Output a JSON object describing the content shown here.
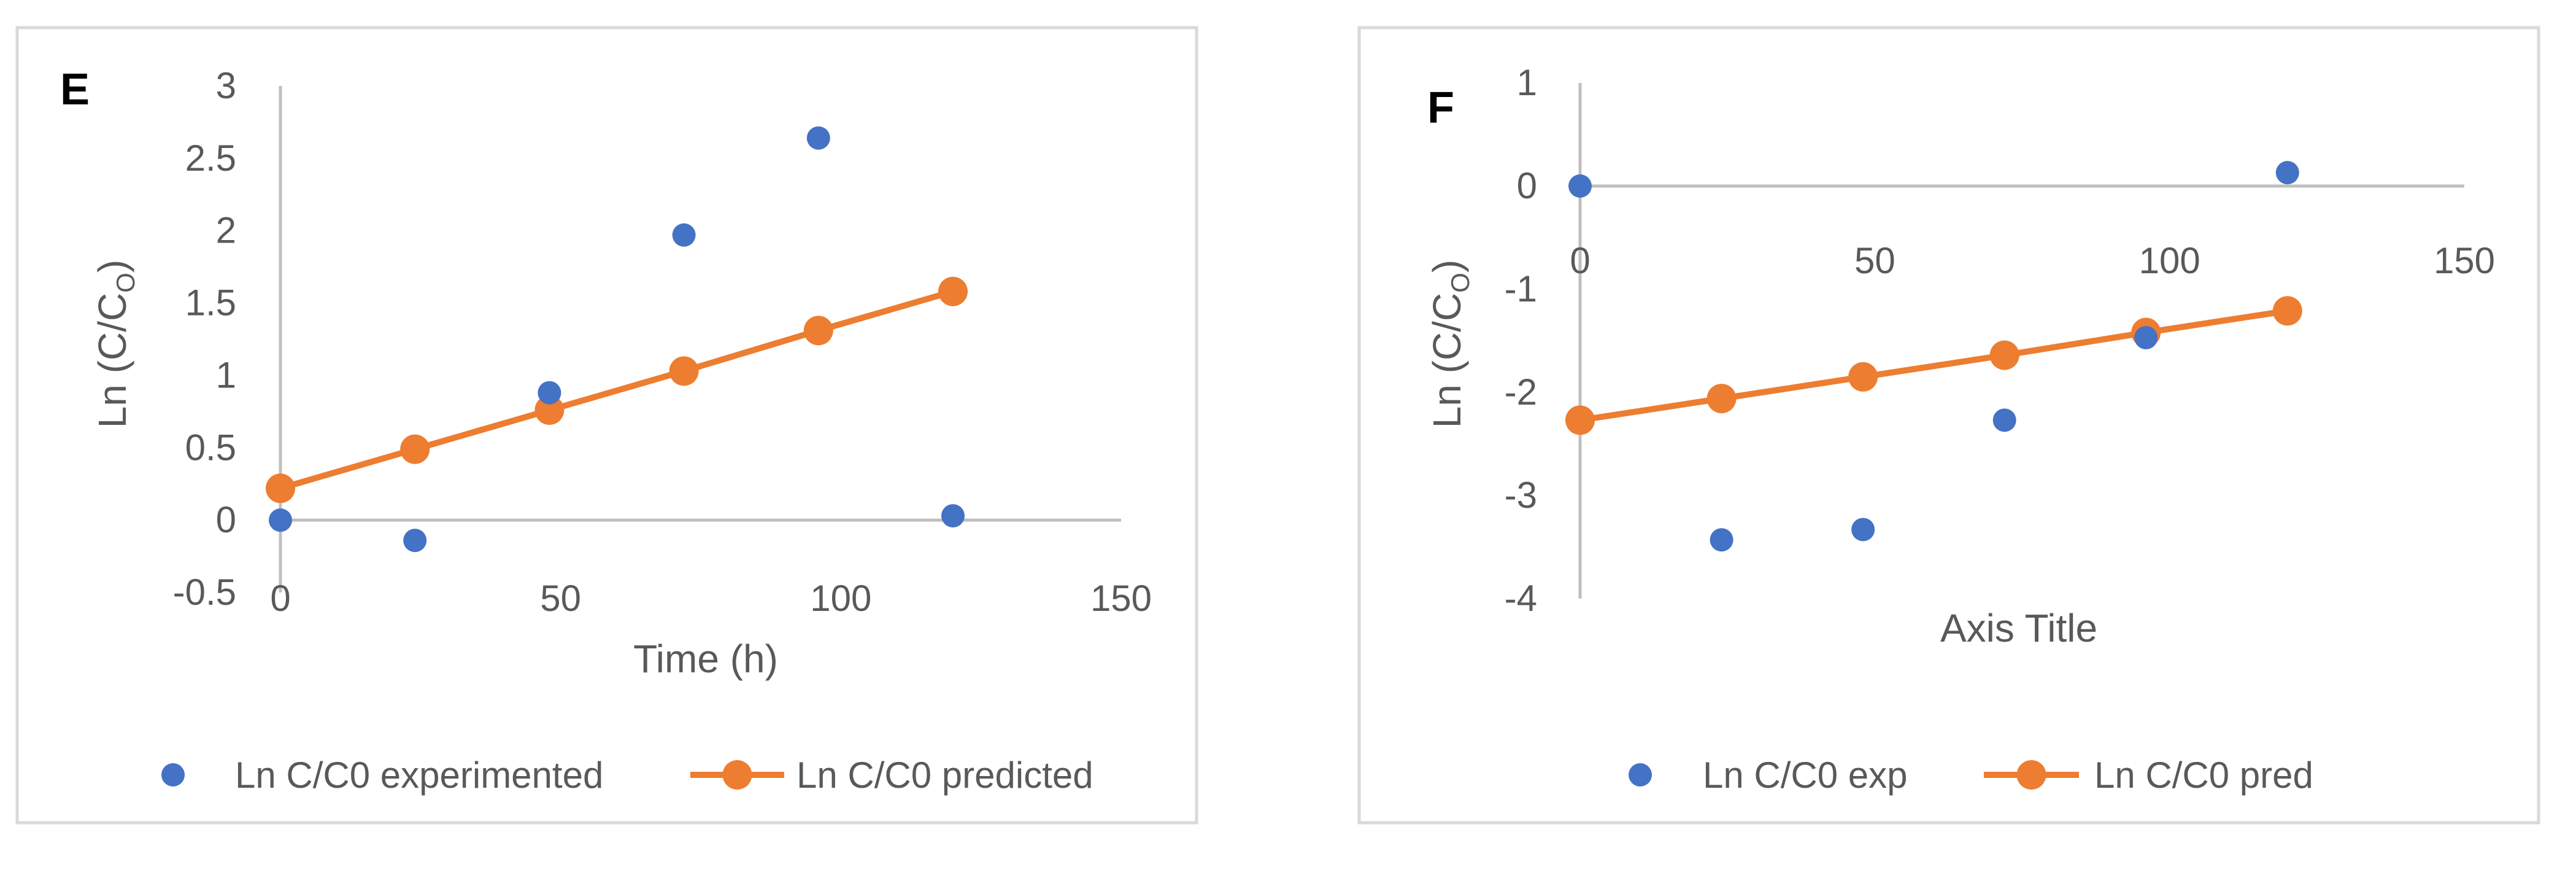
{
  "colors": {
    "experimental": "#4472C4",
    "predicted": "#ED7D31",
    "axis": "#BFBFBF",
    "text": "#595959",
    "frame": "#D9D9D9"
  },
  "chart_data": [
    {
      "panel_label": "E",
      "type": "scatter",
      "title": "",
      "xlabel": "Time (h)",
      "ylabel": "Ln (C/C",
      "ylabel_subscript": "O",
      "ylabel_close": ")",
      "xlim": [
        0,
        150
      ],
      "ylim": [
        -0.5,
        3
      ],
      "x_ticks": [
        0,
        50,
        100,
        150
      ],
      "y_ticks": [
        3,
        2.5,
        2,
        1.5,
        1,
        0.5,
        0,
        -0.5
      ],
      "legend_position": "bottom",
      "series": [
        {
          "name": "Ln C/C0 experimented",
          "type": "scatter",
          "x": [
            0,
            24,
            48,
            72,
            96,
            120
          ],
          "y": [
            0,
            -0.14,
            0.88,
            1.97,
            2.64,
            0.03
          ]
        },
        {
          "name": "Ln C/C0 predicted",
          "type": "line",
          "x": [
            0,
            24,
            48,
            72,
            96,
            120
          ],
          "y": [
            0.22,
            0.49,
            0.76,
            1.03,
            1.31,
            1.58
          ]
        }
      ]
    },
    {
      "panel_label": "F",
      "type": "scatter",
      "title": "",
      "xlabel": "Axis Title",
      "ylabel": "Ln (C/C",
      "ylabel_subscript": "O",
      "ylabel_close": ")",
      "xlim": [
        0,
        150
      ],
      "ylim": [
        -4,
        1
      ],
      "x_ticks": [
        0,
        50,
        100,
        150
      ],
      "y_ticks": [
        1,
        0,
        -1,
        -2,
        -3,
        -4
      ],
      "legend_position": "bottom",
      "series": [
        {
          "name": "Ln C/C0 exp",
          "type": "scatter",
          "x": [
            0,
            24,
            48,
            72,
            96,
            120
          ],
          "y": [
            0,
            -3.43,
            -3.33,
            -2.27,
            -1.47,
            0.13
          ]
        },
        {
          "name": "Ln C/C0 pred",
          "type": "line",
          "x": [
            0,
            24,
            48,
            72,
            96,
            120
          ],
          "y": [
            -2.27,
            -2.06,
            -1.85,
            -1.64,
            -1.42,
            -1.21
          ]
        }
      ]
    }
  ]
}
